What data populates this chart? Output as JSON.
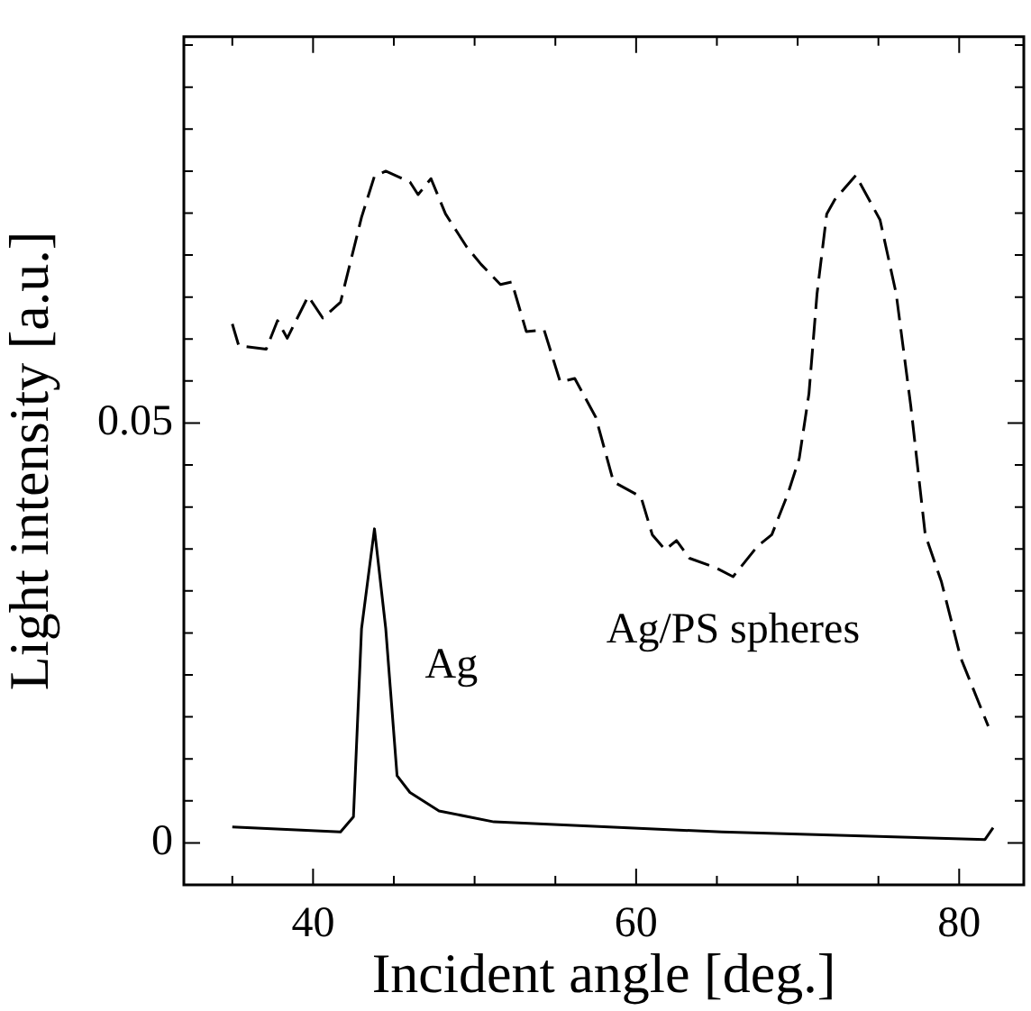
{
  "chart_data": {
    "type": "line",
    "xlabel": "Incident angle [deg.]",
    "ylabel": "Light intensity [a.u.]",
    "xlim": [
      32,
      84
    ],
    "xticks": [
      {
        "value": 35,
        "label": null
      },
      40,
      {
        "value": 45,
        "label": null
      },
      {
        "value": 50,
        "label": null
      },
      {
        "value": 55,
        "label": null
      },
      60,
      {
        "value": 65,
        "label": null
      },
      {
        "value": 70,
        "label": null
      },
      {
        "value": 75,
        "label": null
      },
      80
    ],
    "ylim": [
      -0.005,
      0.096
    ],
    "yticks": [
      0,
      {
        "value": 0.005,
        "label": null
      },
      {
        "value": 0.01,
        "label": null
      },
      {
        "value": 0.015,
        "label": null
      },
      {
        "value": 0.02,
        "label": null
      },
      {
        "value": 0.025,
        "label": null
      },
      {
        "value": 0.03,
        "label": null
      },
      {
        "value": 0.035,
        "label": null
      },
      {
        "value": 0.04,
        "label": null
      },
      {
        "value": 0.045,
        "label": null
      },
      0.05,
      {
        "value": 0.055,
        "label": null
      },
      {
        "value": 0.06,
        "label": null
      },
      {
        "value": 0.065,
        "label": null
      },
      {
        "value": 0.07,
        "label": null
      },
      {
        "value": 0.075,
        "label": null
      },
      {
        "value": 0.08,
        "label": null
      },
      {
        "value": 0.085,
        "label": null
      },
      {
        "value": 0.09,
        "label": null
      },
      {
        "value": 0.095,
        "label": null
      }
    ],
    "grid": false,
    "legend": false,
    "marker": "none",
    "series": [
      {
        "name": "Ag",
        "color": "#000000",
        "line_style": "solid",
        "x": [
          35,
          41.7,
          42.5,
          43,
          43.8,
          44.5,
          45.2,
          46,
          47.8,
          51.2,
          65.3,
          81.6,
          82.1
        ],
        "values": [
          0.0019,
          0.0013,
          0.0031,
          0.0255,
          0.0374,
          0.0255,
          0.008,
          0.006,
          0.0038,
          0.0025,
          0.0013,
          0.0004,
          0.0018
        ]
      },
      {
        "name": "Ag/PS spheres",
        "color": "#000000",
        "line_style": "dashed",
        "x": [
          35,
          35.4,
          37.1,
          37.8,
          38.4,
          39.7,
          40.6,
          41.7,
          43,
          43.8,
          44.5,
          46,
          46.5,
          47.3,
          48.2,
          49.5,
          50.4,
          51.6,
          52.3,
          53.2,
          54.3,
          55.3,
          56.2,
          57.5,
          58.6,
          60.3,
          61,
          61.8,
          62.5,
          63.3,
          64.9,
          66,
          67.5,
          68.4,
          69.4,
          70.1,
          70.7,
          71.2,
          71.8,
          72.3,
          73.6,
          75.1,
          76.1,
          77,
          77.9,
          78.9,
          80.1,
          81.8
        ],
        "values": [
          0.0618,
          0.0592,
          0.0588,
          0.0622,
          0.0601,
          0.0651,
          0.0625,
          0.0644,
          0.0745,
          0.0794,
          0.08,
          0.0787,
          0.0772,
          0.0791,
          0.0749,
          0.071,
          0.0689,
          0.0665,
          0.0668,
          0.0609,
          0.0611,
          0.0549,
          0.0553,
          0.0507,
          0.043,
          0.0412,
          0.0367,
          0.0349,
          0.036,
          0.0339,
          0.0328,
          0.0317,
          0.0353,
          0.0367,
          0.0416,
          0.0458,
          0.0535,
          0.0654,
          0.0749,
          0.0766,
          0.0795,
          0.0742,
          0.0654,
          0.0521,
          0.0367,
          0.0311,
          0.022,
          0.0139
        ]
      }
    ]
  }
}
